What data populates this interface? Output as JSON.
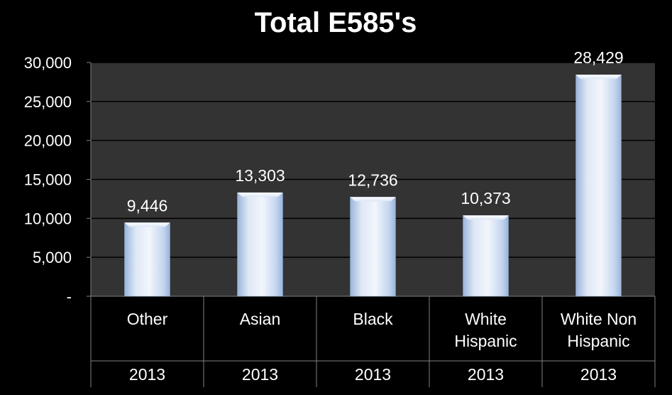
{
  "chart_data": {
    "type": "bar",
    "title": "Total E585's",
    "xlabel": "",
    "ylabel": "",
    "ylim": [
      0,
      30000
    ],
    "yticks": [
      0,
      5000,
      10000,
      15000,
      20000,
      25000,
      30000
    ],
    "ytick_labels": [
      "-",
      "5,000",
      "10,000",
      "15,000",
      "20,000",
      "25,000",
      "30,000"
    ],
    "grid": true,
    "legend": "none",
    "categories": [
      {
        "label_lines": [
          "Other"
        ],
        "year": "2013"
      },
      {
        "label_lines": [
          "Asian"
        ],
        "year": "2013"
      },
      {
        "label_lines": [
          "Black"
        ],
        "year": "2013"
      },
      {
        "label_lines": [
          "White",
          "Hispanic"
        ],
        "year": "2013"
      },
      {
        "label_lines": [
          "White Non",
          "Hispanic"
        ],
        "year": "2013"
      }
    ],
    "values": [
      9446,
      13303,
      12736,
      10373,
      28429
    ],
    "value_labels": [
      "9,446",
      "13,303",
      "12,736",
      "10,373",
      "28,429"
    ],
    "colors": {
      "background": "#000000",
      "plot_area": "#333333",
      "gridline": "#000000",
      "bar_light": "#f2f6fc",
      "bar_mid": "#c5d6ef",
      "bar_dark": "#9bb4db",
      "text": "#ffffff",
      "axis": "#7f7f7f"
    }
  }
}
